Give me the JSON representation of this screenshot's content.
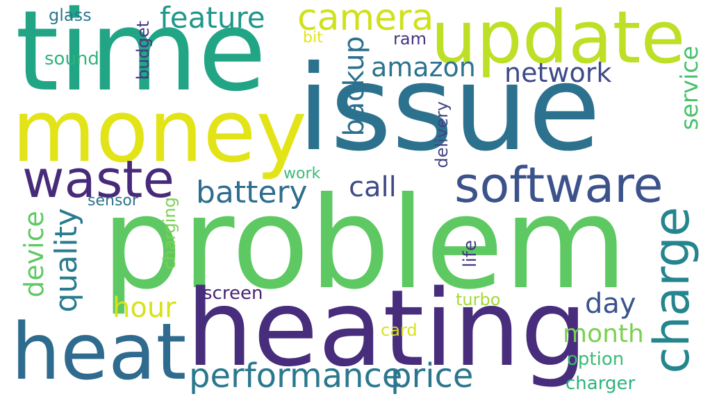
{
  "words": [
    {
      "text": "problem",
      "color": "#5ec962"
    },
    {
      "text": "issue",
      "color": "#2c728e"
    },
    {
      "text": "time",
      "color": "#21a585"
    },
    {
      "text": "heating",
      "color": "#472d7b"
    },
    {
      "text": "money",
      "color": "#e2e418"
    },
    {
      "text": "update",
      "color": "#bddf26"
    },
    {
      "text": "heat",
      "color": "#2f6b8e"
    },
    {
      "text": "software",
      "color": "#3b528b"
    },
    {
      "text": "waste",
      "color": "#472a7a"
    },
    {
      "text": "charge",
      "color": "#25858e"
    },
    {
      "text": "camera",
      "color": "#d0e11c"
    },
    {
      "text": "performance",
      "color": "#2a788e"
    },
    {
      "text": "price",
      "color": "#2b758e"
    },
    {
      "text": "battery",
      "color": "#2e6d8e"
    },
    {
      "text": "feature",
      "color": "#1f978b"
    },
    {
      "text": "amazon",
      "color": "#2c738e"
    },
    {
      "text": "network",
      "color": "#3e4989"
    },
    {
      "text": "quality",
      "color": "#287c8e"
    },
    {
      "text": "device",
      "color": "#5ec962"
    },
    {
      "text": "backup",
      "color": "#2d708e"
    },
    {
      "text": "service",
      "color": "#4ac16d"
    },
    {
      "text": "month",
      "color": "#7ad151"
    },
    {
      "text": "day",
      "color": "#3a548c"
    },
    {
      "text": "call",
      "color": "#3e4a89"
    },
    {
      "text": "hour",
      "color": "#d8e219"
    },
    {
      "text": "charging",
      "color": "#7ad151"
    },
    {
      "text": "delivery",
      "color": "#414487"
    },
    {
      "text": "screen",
      "color": "#482475"
    },
    {
      "text": "life",
      "color": "#443983"
    },
    {
      "text": "budget",
      "color": "#453781"
    },
    {
      "text": "charger",
      "color": "#2db27d"
    },
    {
      "text": "option",
      "color": "#3bbb75"
    },
    {
      "text": "sound",
      "color": "#2fb47c"
    },
    {
      "text": "glass",
      "color": "#2a788e"
    },
    {
      "text": "sensor",
      "color": "#2c738e"
    },
    {
      "text": "card",
      "color": "#d8e219"
    },
    {
      "text": "turbo",
      "color": "#a2da37"
    },
    {
      "text": "work",
      "color": "#3bbb75"
    },
    {
      "text": "ram",
      "color": "#46337f"
    },
    {
      "text": "bit",
      "color": "#e5e419"
    }
  ]
}
